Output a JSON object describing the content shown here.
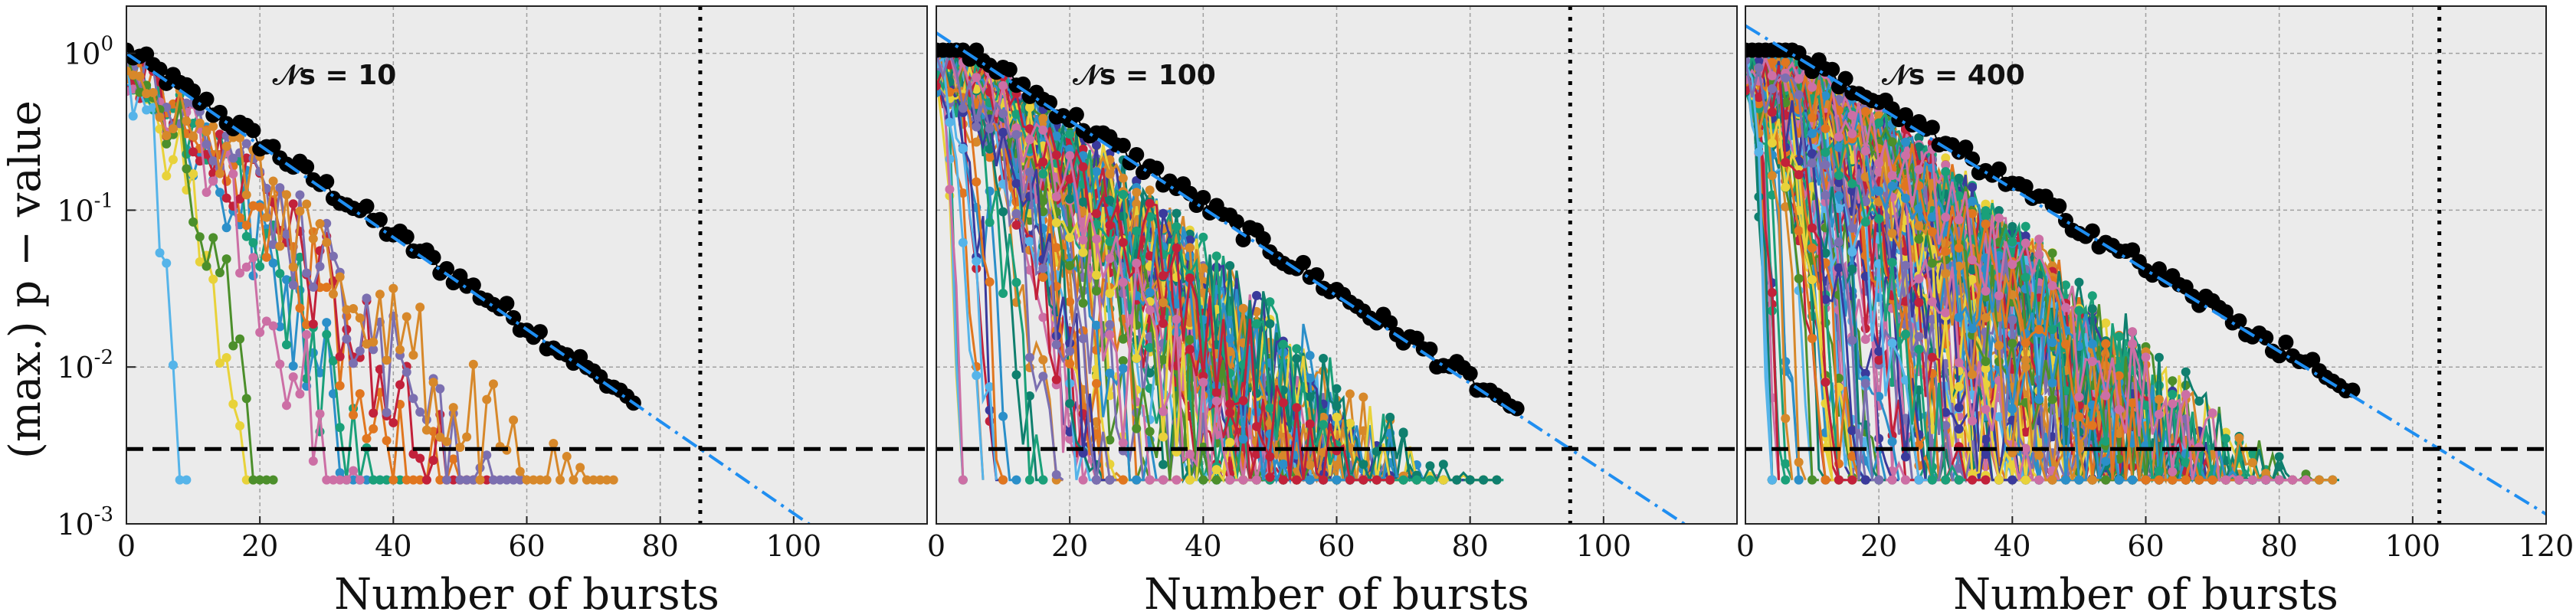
{
  "chart_data": [
    {
      "type": "line",
      "label": "𝒩s = 10",
      "n_series": 10,
      "xlabel": "Number of bursts",
      "ylabel": "(max.) p − value",
      "xlim": [
        0,
        120
      ],
      "ylim": [
        0.001,
        2
      ],
      "yscale": "log",
      "x_ticks": [
        "0",
        "20",
        "40",
        "60",
        "80",
        "100"
      ],
      "y_ticks": [
        "10^0",
        "10^-1",
        "10^-2",
        "10^-3"
      ],
      "threshold_p": 0.003,
      "cutoff_bursts": 86,
      "fit_line": {
        "x0": 0,
        "p0": 1.0,
        "x1": 86,
        "p1": 0.003
      },
      "max_series_end": 76,
      "grid": true,
      "colors": {
        "max_points": "#000000",
        "fit": "#1f8ef1",
        "threshold": "#000000",
        "panel_bg": "#ebebeb"
      }
    },
    {
      "type": "line",
      "label": "𝒩s = 100",
      "n_series": 100,
      "xlabel": "Number of bursts",
      "xlim": [
        0,
        120
      ],
      "ylim": [
        0.001,
        2
      ],
      "yscale": "log",
      "x_ticks": [
        "0",
        "20",
        "40",
        "60",
        "80",
        "100"
      ],
      "threshold_p": 0.003,
      "cutoff_bursts": 95,
      "fit_line": {
        "x0": 0,
        "p0": 1.35,
        "x1": 95,
        "p1": 0.003
      },
      "max_series_end": 87,
      "grid": true
    },
    {
      "type": "line",
      "label": "𝒩s = 400",
      "n_series": 400,
      "xlabel": "Number of bursts",
      "xlim": [
        0,
        120
      ],
      "ylim": [
        0.001,
        2
      ],
      "yscale": "log",
      "x_ticks": [
        "0",
        "20",
        "40",
        "60",
        "80",
        "100",
        "120"
      ],
      "threshold_p": 0.003,
      "cutoff_bursts": 104,
      "fit_line": {
        "x0": 0,
        "p0": 1.5,
        "x1": 104,
        "p1": 0.003
      },
      "max_series_end": 91,
      "grid": true
    }
  ]
}
